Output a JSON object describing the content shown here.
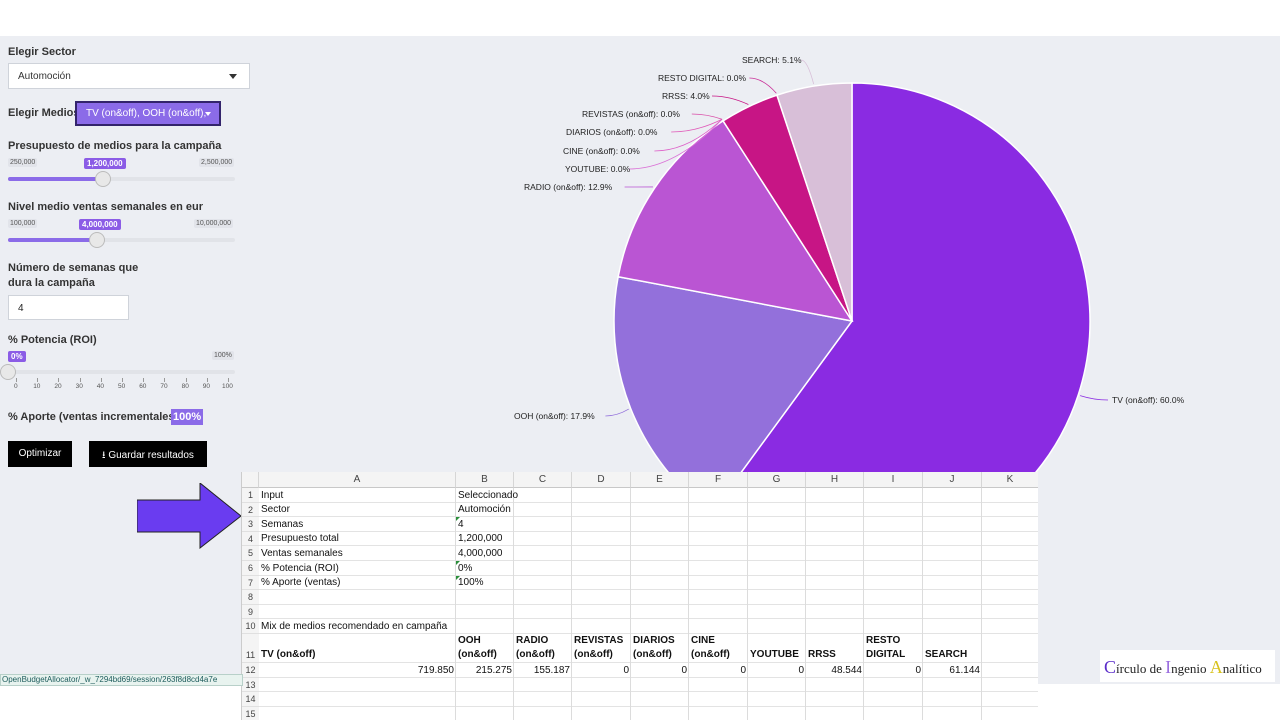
{
  "sidebar": {
    "sector_label": "Elegir Sector",
    "sector_value": "Automoción",
    "medios_label": "Elegir Medios:",
    "medios_value": "TV (on&off), OOH (on&off),",
    "budget": {
      "label": "Presupuesto de medios para la campaña",
      "min": "250,000",
      "max": "2,500,000",
      "value": "1,200,000",
      "fraction": 0.42
    },
    "sales": {
      "label": "Nivel medio ventas semanales en eur",
      "min": "100,000",
      "max": "10,000,000",
      "value": "4,000,000",
      "fraction": 0.39
    },
    "weeks": {
      "label_line1": "Número de semanas que",
      "label_line2": "dura la campaña",
      "value": "4"
    },
    "roi": {
      "label": "% Potencia (ROI)",
      "value": "0%",
      "max": "100%",
      "fraction": 0.0,
      "ticks": [
        "0",
        "10",
        "20",
        "30",
        "40",
        "50",
        "60",
        "70",
        "80",
        "90",
        "100"
      ]
    },
    "aporte": {
      "label": "% Aporte (ventas incrementales) =",
      "value": "100%"
    },
    "optimize_button": "Optimizar",
    "save_button": "Guardar resultados",
    "accent": "#8b6be8"
  },
  "chart_data": {
    "type": "pie",
    "title": "",
    "series": [
      {
        "name": "TV (on&off)",
        "label": "TV (on&off): 60.0%",
        "value": 60.0,
        "color": "#8a2be2"
      },
      {
        "name": "OOH (on&off)",
        "label": "OOH (on&off): 17.9%",
        "value": 17.9,
        "color": "#9370db"
      },
      {
        "name": "RADIO (on&off)",
        "label": "RADIO (on&off): 12.9%",
        "value": 12.9,
        "color": "#ba55d3"
      },
      {
        "name": "YOUTUBE",
        "label": "YOUTUBE: 0.0%",
        "value": 0.0,
        "color": "#da70d6"
      },
      {
        "name": "CINE (on&off)",
        "label": "CINE (on&off): 0.0%",
        "value": 0.0,
        "color": "#dd5fc8"
      },
      {
        "name": "DIARIOS (on&off)",
        "label": "DIARIOS (on&off): 0.0%",
        "value": 0.0,
        "color": "#e05ab9"
      },
      {
        "name": "REVISTAS (on&off)",
        "label": "REVISTAS (on&off): 0.0%",
        "value": 0.0,
        "color": "#d94aa6"
      },
      {
        "name": "RRSS",
        "label": "RRSS: 4.0%",
        "value": 4.0,
        "color": "#c71585"
      },
      {
        "name": "RESTO DIGITAL",
        "label": "RESTO DIGITAL: 0.0%",
        "value": 0.0,
        "color": "#c92f98"
      },
      {
        "name": "SEARCH",
        "label": "SEARCH: 5.1%",
        "value": 5.1,
        "color": "#d8bfd8"
      }
    ]
  },
  "sheet": {
    "columns": [
      "A",
      "B",
      "C",
      "D",
      "E",
      "F",
      "G",
      "H",
      "I",
      "J",
      "K"
    ],
    "rows": [
      "1",
      "2",
      "3",
      "4",
      "5",
      "6",
      "7",
      "8",
      "9",
      "10",
      "11",
      "12",
      "13",
      "14",
      "15"
    ],
    "r1": [
      "Input",
      "Seleccionado"
    ],
    "r2": [
      "Sector",
      "Automoción"
    ],
    "r3": [
      "Semanas",
      "4"
    ],
    "r4": [
      "Presupuesto total",
      "1,200,000"
    ],
    "r5": [
      "Ventas semanales",
      "4,000,000"
    ],
    "r6": [
      "% Potencia (ROI)",
      "0%"
    ],
    "r7": [
      "% Aporte (ventas)",
      "100%"
    ],
    "r10": "Mix de medios recomendado en campaña",
    "headers": [
      [
        "TV (on&off)",
        ""
      ],
      [
        "OOH",
        "(on&off)"
      ],
      [
        "RADIO",
        "(on&off)"
      ],
      [
        "REVISTAS",
        "(on&off)"
      ],
      [
        "DIARIOS",
        "(on&off)"
      ],
      [
        "CINE",
        "(on&off)"
      ],
      [
        "YOUTUBE",
        ""
      ],
      [
        "RRSS",
        ""
      ],
      [
        "RESTO",
        "DIGITAL"
      ],
      [
        "SEARCH",
        ""
      ]
    ],
    "values": [
      "719.850",
      "215.275",
      "155.187",
      "0",
      "0",
      "0",
      "0",
      "48.544",
      "0",
      "61.144"
    ]
  },
  "status_url": "OpenBudgetAllocator/_w_7294bd69/session/263f8d8cd4a7e",
  "logo": {
    "c": "C",
    "t1": "írculo de ",
    "i": "I",
    "t2": "ngenio ",
    "a": "A",
    "t3": "nalítico"
  },
  "arrow_color": "#6a3cf0"
}
